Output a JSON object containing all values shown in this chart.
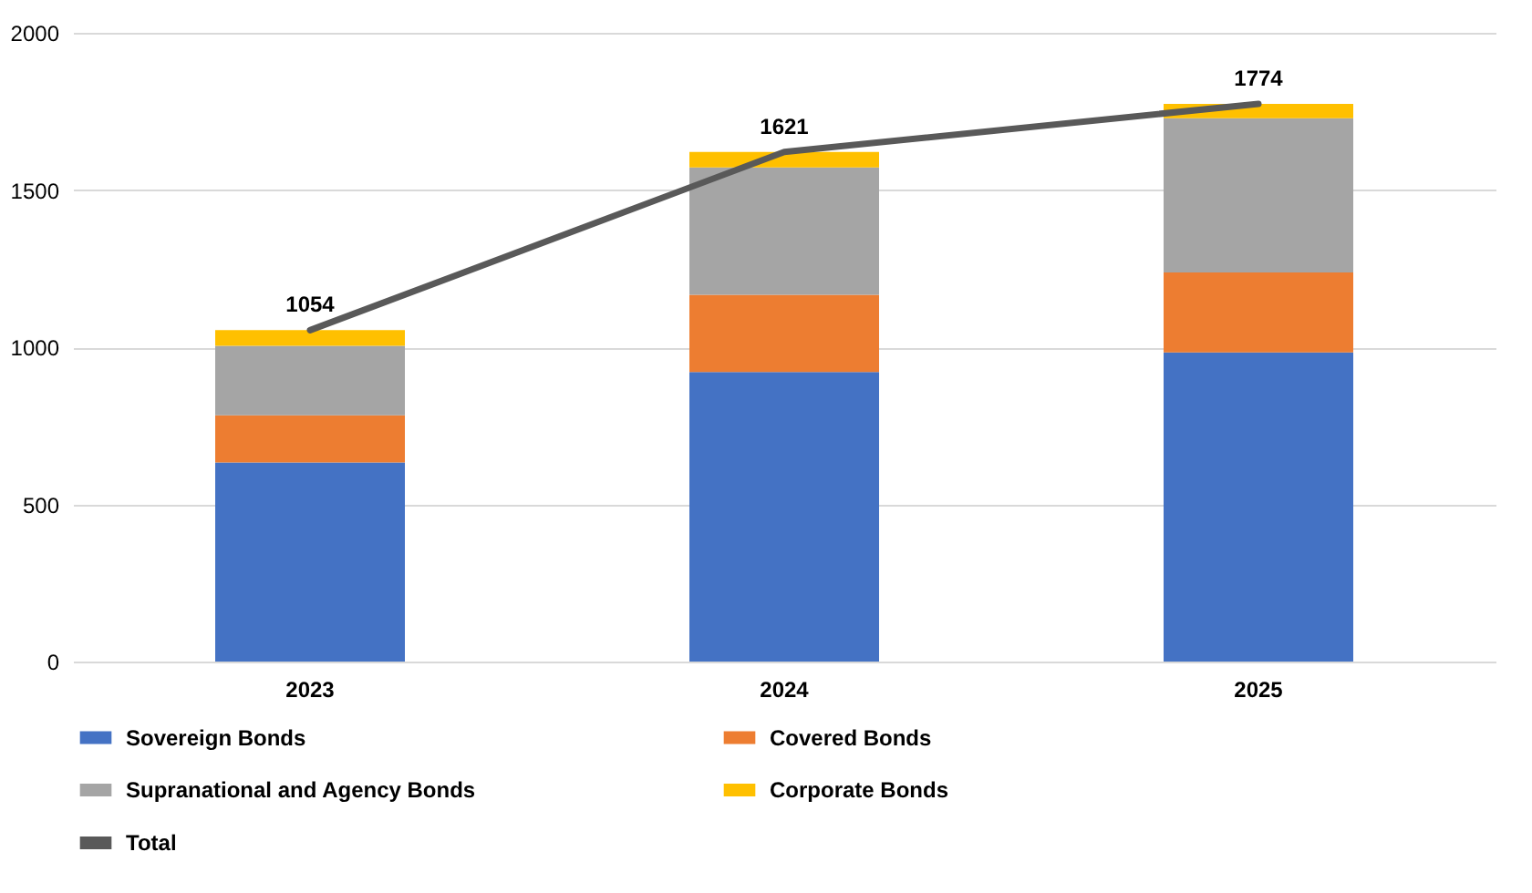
{
  "chart_data": {
    "type": "bar",
    "stacked": true,
    "categories": [
      "2023",
      "2024",
      "2025"
    ],
    "series": [
      {
        "name": "Sovereign Bonds",
        "color": "#4472c4",
        "values": [
          633,
          921,
          983
        ]
      },
      {
        "name": "Covered Bonds",
        "color": "#ed7d31",
        "values": [
          150,
          246,
          255
        ]
      },
      {
        "name": "Supranational and Agency Bonds",
        "color": "#a5a5a5",
        "values": [
          221,
          405,
          490
        ]
      },
      {
        "name": "Corporate Bonds",
        "color": "#ffc000",
        "values": [
          50,
          49,
          46
        ]
      },
      {
        "name": "Total",
        "type": "line",
        "color": "#595959",
        "values": [
          1054,
          1621,
          1774
        ],
        "value_labels": [
          "1054",
          "1621",
          "1774"
        ]
      }
    ],
    "ylim": [
      0,
      2000
    ],
    "yticks": [
      0,
      500,
      1000,
      1500,
      2000
    ],
    "grid": "y",
    "legend": "bottom"
  }
}
